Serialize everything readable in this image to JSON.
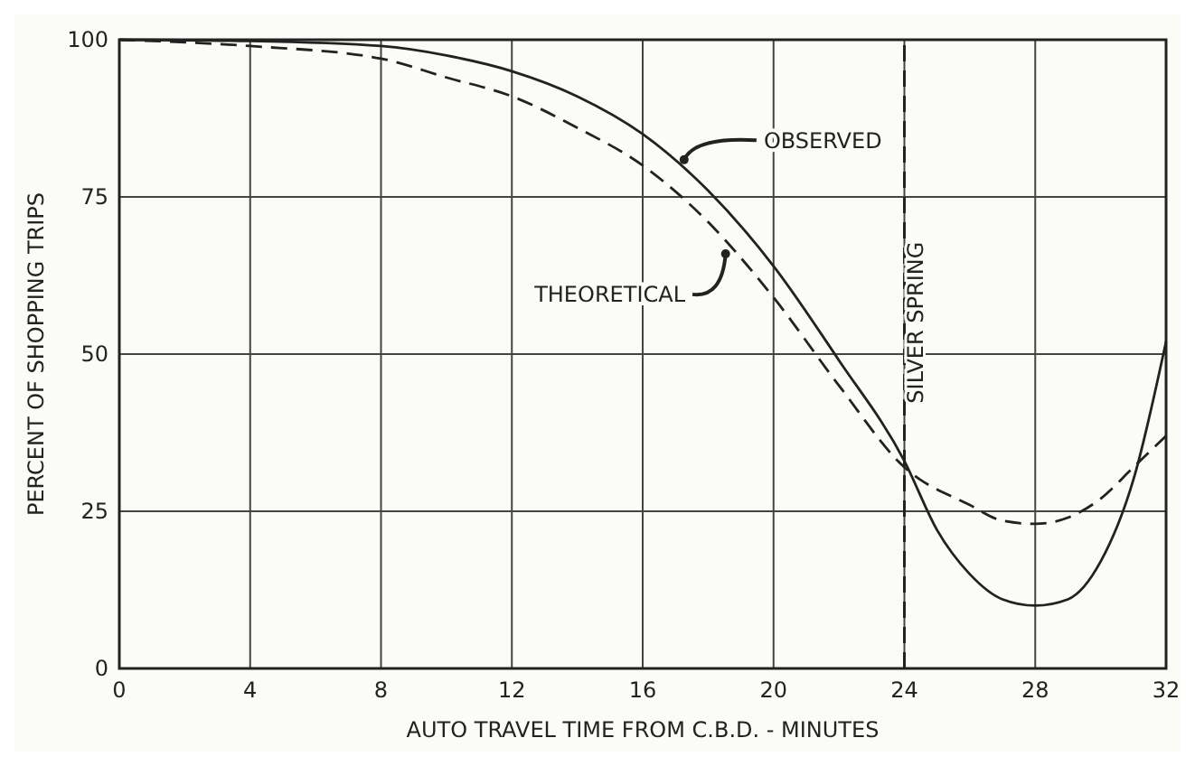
{
  "chart_data": {
    "type": "line",
    "xlabel": "AUTO TRAVEL TIME FROM C.B.D. - MINUTES",
    "ylabel": "PERCENT OF SHOPPING TRIPS",
    "xlim": [
      0,
      32
    ],
    "ylim": [
      0,
      100
    ],
    "xticks": [
      0,
      4,
      8,
      12,
      16,
      20,
      24,
      28,
      32
    ],
    "yticks": [
      0,
      25,
      50,
      75,
      100
    ],
    "grid": true,
    "marker": "none",
    "series": [
      {
        "name": "OBSERVED",
        "color": "#222222",
        "line_style": "solid",
        "x": [
          0,
          4,
          8,
          10,
          12,
          14,
          16,
          18,
          20,
          22,
          24,
          25,
          26,
          27,
          28,
          29,
          30,
          31,
          32
        ],
        "values": [
          100,
          99.8,
          99,
          97.5,
          95,
          91,
          85,
          76,
          64,
          49,
          33,
          22,
          15,
          11,
          10,
          11,
          17,
          30,
          52
        ]
      },
      {
        "name": "THEORETICAL",
        "color": "#222222",
        "line_style": "dashed",
        "x": [
          0,
          4,
          8,
          10,
          12,
          14,
          16,
          18,
          20,
          22,
          24,
          26,
          27,
          28,
          29,
          30,
          31,
          32
        ],
        "values": [
          100,
          99,
          97,
          94,
          91,
          86,
          80,
          71,
          59,
          45,
          32,
          26,
          23.5,
          23,
          24,
          27,
          32,
          37
        ]
      }
    ],
    "ref_lines": [
      {
        "axis": "x",
        "value": 24,
        "label": "SILVER SPRING",
        "line_style": "dashed",
        "color": "#222222"
      }
    ]
  }
}
